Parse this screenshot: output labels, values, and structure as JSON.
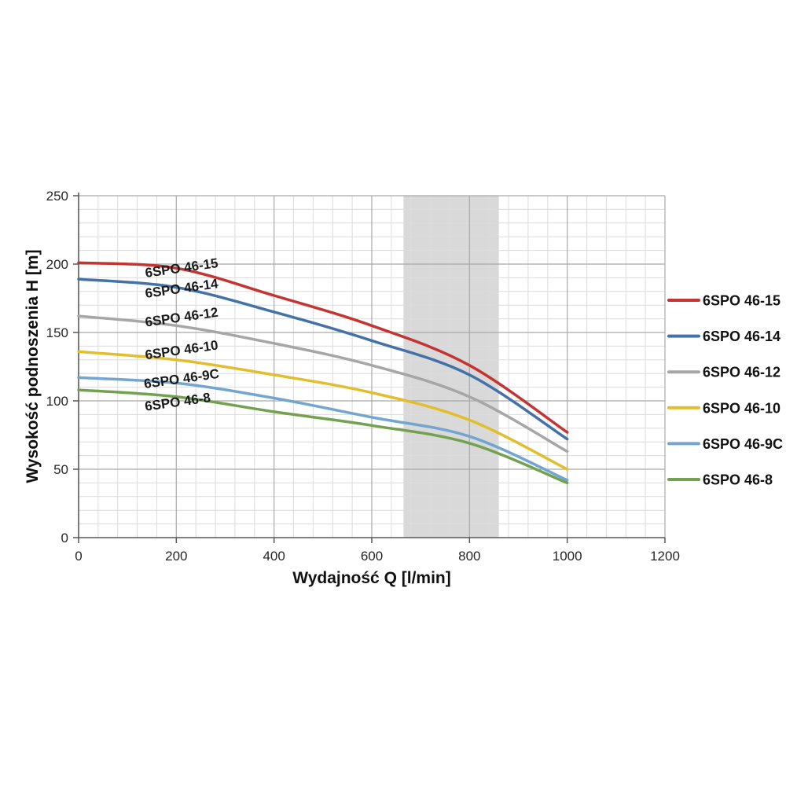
{
  "chart_data": {
    "type": "line",
    "x": [
      0,
      200,
      400,
      600,
      800,
      1000
    ],
    "series": [
      {
        "name": "6SPO 46-15",
        "color": "#c43431",
        "values": [
          201,
          197,
          177,
          155,
          126,
          77
        ],
        "label_q": 212,
        "label_h": 194
      },
      {
        "name": "6SPO 46-14",
        "color": "#4471a7",
        "values": [
          189,
          183,
          165,
          144,
          119,
          72
        ],
        "label_q": 212,
        "label_h": 179
      },
      {
        "name": "6SPO 46-12",
        "color": "#a6a6a6",
        "values": [
          162,
          155,
          142,
          126,
          103,
          63
        ],
        "label_q": 212,
        "label_h": 158
      },
      {
        "name": "6SPO 46-10",
        "color": "#e2be2d",
        "values": [
          136,
          130,
          119,
          106,
          86,
          50
        ],
        "label_q": 212,
        "label_h": 134
      },
      {
        "name": "6SPO 46-9C",
        "color": "#72a5cf",
        "values": [
          117,
          113,
          102,
          88,
          74,
          42
        ],
        "label_q": 212,
        "label_h": 113
      },
      {
        "name": "6SPO 46-8",
        "color": "#72a24f",
        "values": [
          108,
          103,
          92,
          82,
          69,
          40
        ],
        "label_q": 204,
        "label_h": 96
      }
    ],
    "xlabel": "Wydajność Q [l/min]",
    "ylabel": "Wysokość podnoszenia H [m]",
    "xlim": [
      0,
      1200
    ],
    "ylim": [
      0,
      250
    ],
    "x_ticks": [
      "0",
      "200",
      "400",
      "600",
      "800",
      "1000",
      "1200"
    ],
    "y_ticks": [
      "0",
      "50",
      "100",
      "150",
      "200",
      "250"
    ],
    "x_minor_step": 40,
    "y_minor_step": 10,
    "grid": true,
    "legend_position": "right",
    "band": {
      "from": 665,
      "to": 860,
      "color": "#d9d9d9"
    },
    "curve_label_rotation": -8,
    "colors": {
      "axis": "#595959",
      "grid_minor": "#dcdcdc",
      "grid_major": "#a9a9a9",
      "tick_text": "#262626",
      "curve_label_text": "#1a1a1a",
      "legend_text": "#111111"
    }
  }
}
